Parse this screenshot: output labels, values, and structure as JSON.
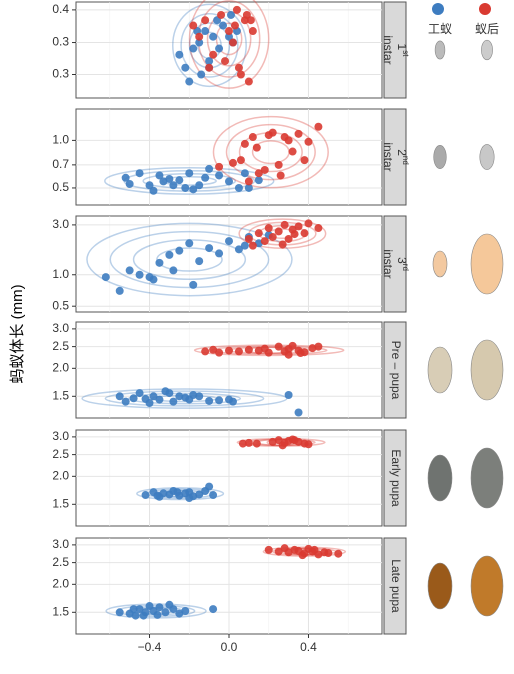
{
  "chart_data": {
    "type": "scatter",
    "y_label": "蚂蚁体长 (mm)",
    "log_y": true,
    "grid": true,
    "legend": [
      {
        "name": "工蚁",
        "color": "#3d7cc0"
      },
      {
        "name": "蚁后",
        "color": "#d93a31"
      }
    ],
    "xlim": [
      -0.77,
      0.77
    ],
    "xticks": [
      {
        "value": -0.4,
        "label": "−0.4"
      },
      {
        "value": 0,
        "label": "0.0"
      },
      0.4
    ],
    "x_minor_ticks": [
      -0.6,
      -0.2,
      0.2,
      0.6
    ],
    "panels": [
      {
        "strip": [
          "1",
          "st",
          "instar"
        ],
        "ylim": [
          0.258,
          0.416
        ],
        "yticks": [
          0.4,
          {
            "value": 0.34,
            "label": "0.3"
          },
          {
            "value": 0.29,
            "label": "0.3"
          }
        ],
        "series": [
          {
            "x": [
              -0.22,
              -0.18,
              -0.15,
              -0.12,
              -0.1,
              -0.08,
              -0.05,
              -0.03,
              0,
              0.02,
              -0.2,
              -0.14,
              -0.06,
              0.04,
              -0.25,
              -0.1,
              -0.16,
              0.01
            ],
            "y": [
              0.3,
              0.33,
              0.34,
              0.36,
              0.31,
              0.35,
              0.33,
              0.37,
              0.35,
              0.34,
              0.28,
              0.29,
              0.38,
              0.36,
              0.32,
              0.3,
              0.36,
              0.39
            ]
          },
          {
            "x": [
              -0.18,
              -0.12,
              -0.08,
              -0.04,
              0,
              0.03,
              0.05,
              0.08,
              0.1,
              0.12,
              -0.02,
              0.06,
              -0.1,
              0.02,
              0.09,
              -0.15,
              0.04,
              0.11
            ],
            "y": [
              0.37,
              0.38,
              0.32,
              0.39,
              0.36,
              0.37,
              0.3,
              0.38,
              0.28,
              0.36,
              0.31,
              0.29,
              0.3,
              0.34,
              0.39,
              0.35,
              0.4,
              0.38
            ]
          }
        ]
      },
      {
        "strip": [
          "2",
          "nd",
          "instar"
        ],
        "ylim": [
          0.39,
          1.58
        ],
        "yticks": [
          {
            "value": 1,
            "label": "1.0"
          },
          0.7,
          0.5
        ],
        "series": [
          {
            "x": [
              -0.52,
              -0.5,
              -0.45,
              -0.4,
              -0.38,
              -0.33,
              -0.3,
              -0.25,
              -0.22,
              -0.2,
              -0.18,
              -0.15,
              -0.1,
              -0.05,
              0,
              0.05,
              -0.28,
              -0.12,
              0.1,
              -0.35,
              0.15,
              0.08
            ],
            "y": [
              0.58,
              0.53,
              0.62,
              0.52,
              0.48,
              0.55,
              0.57,
              0.56,
              0.5,
              0.62,
              0.49,
              0.52,
              0.66,
              0.6,
              0.55,
              0.5,
              0.52,
              0.58,
              0.5,
              0.6,
              0.56,
              0.62
            ]
          },
          {
            "x": [
              -0.05,
              0.02,
              0.08,
              0.12,
              0.15,
              0.2,
              0.22,
              0.25,
              0.28,
              0.3,
              0.32,
              0.35,
              0.38,
              0.4,
              0.45,
              0.1,
              0.18,
              0.26,
              0.06,
              0.14
            ],
            "y": [
              0.68,
              0.72,
              0.95,
              1.05,
              0.62,
              1.08,
              1.12,
              0.7,
              1.05,
              1.0,
              0.85,
              1.1,
              0.75,
              0.98,
              1.22,
              0.55,
              0.65,
              0.6,
              0.75,
              0.9
            ]
          }
        ]
      },
      {
        "strip": [
          "3",
          "rd",
          "instar"
        ],
        "ylim": [
          0.44,
          3.65
        ],
        "yticks": [
          {
            "value": 3,
            "label": "3.0"
          },
          {
            "value": 1,
            "label": "1.0"
          },
          0.5
        ],
        "series": [
          {
            "x": [
              -0.62,
              -0.55,
              -0.5,
              -0.45,
              -0.4,
              -0.35,
              -0.3,
              -0.25,
              -0.2,
              -0.15,
              -0.1,
              -0.05,
              0,
              0.05,
              0.1,
              0.15,
              -0.38,
              -0.28,
              0.2,
              0.08,
              -0.18
            ],
            "y": [
              0.95,
              0.7,
              1.1,
              1.0,
              0.95,
              1.3,
              1.55,
              1.7,
              2.0,
              1.35,
              1.8,
              1.6,
              2.1,
              1.75,
              2.3,
              2.0,
              0.9,
              1.1,
              2.4,
              1.9,
              0.8
            ]
          },
          {
            "x": [
              0.1,
              0.15,
              0.2,
              0.22,
              0.25,
              0.28,
              0.3,
              0.32,
              0.35,
              0.38,
              0.4,
              0.45,
              0.27,
              0.33,
              0.18,
              0.12
            ],
            "y": [
              2.2,
              2.5,
              2.8,
              2.3,
              2.6,
              3.0,
              2.2,
              2.7,
              2.9,
              2.5,
              3.1,
              2.8,
              1.95,
              2.45,
              2.1,
              1.9
            ]
          }
        ]
      },
      {
        "strip": [
          "Pre – pupa"
        ],
        "ylim": [
          1.2,
          3.22
        ],
        "yticks": [
          {
            "value": 3,
            "label": "3.0"
          },
          2.5,
          {
            "value": 2,
            "label": "2.0"
          },
          1.5
        ],
        "series": [
          {
            "x": [
              -0.55,
              -0.52,
              -0.48,
              -0.45,
              -0.4,
              -0.38,
              -0.35,
              -0.3,
              -0.28,
              -0.25,
              -0.22,
              -0.2,
              -0.15,
              -0.1,
              -0.05,
              0,
              0.02,
              -0.42,
              -0.32,
              -0.18,
              0.3,
              0.35
            ],
            "y": [
              1.5,
              1.42,
              1.47,
              1.55,
              1.4,
              1.5,
              1.45,
              1.55,
              1.42,
              1.5,
              1.48,
              1.45,
              1.5,
              1.43,
              1.44,
              1.45,
              1.42,
              1.46,
              1.58,
              1.52,
              1.52,
              1.27
            ]
          },
          {
            "x": [
              -0.12,
              -0.08,
              -0.05,
              0,
              0.05,
              0.1,
              0.15,
              0.18,
              0.2,
              0.25,
              0.28,
              0.3,
              0.32,
              0.35,
              0.38,
              0.42,
              0.45,
              0.3,
              0.36
            ],
            "y": [
              2.38,
              2.42,
              2.35,
              2.4,
              2.38,
              2.42,
              2.4,
              2.45,
              2.35,
              2.5,
              2.38,
              2.44,
              2.52,
              2.4,
              2.36,
              2.46,
              2.5,
              2.3,
              2.34
            ]
          }
        ]
      },
      {
        "strip": [
          "Early pupa"
        ],
        "ylim": [
          1.2,
          3.22
        ],
        "yticks": [
          {
            "value": 3,
            "label": "3.0"
          },
          2.5,
          {
            "value": 2,
            "label": "2.0"
          },
          1.5
        ],
        "series": [
          {
            "x": [
              -0.42,
              -0.38,
              -0.35,
              -0.33,
              -0.3,
              -0.28,
              -0.25,
              -0.22,
              -0.2,
              -0.18,
              -0.15,
              -0.12,
              -0.1,
              -0.36,
              -0.26,
              -0.08,
              -0.2
            ],
            "y": [
              1.65,
              1.7,
              1.62,
              1.68,
              1.66,
              1.72,
              1.64,
              1.68,
              1.7,
              1.63,
              1.66,
              1.72,
              1.8,
              1.64,
              1.7,
              1.65,
              1.6
            ]
          },
          {
            "x": [
              0.07,
              0.1,
              0.14,
              0.22,
              0.25,
              0.28,
              0.3,
              0.32,
              0.35,
              0.38,
              0.4,
              0.27,
              0.33
            ],
            "y": [
              2.8,
              2.82,
              2.8,
              2.85,
              2.9,
              2.82,
              2.88,
              2.92,
              2.85,
              2.8,
              2.78,
              2.75,
              2.9
            ]
          }
        ]
      },
      {
        "strip": [
          "Late pupa"
        ],
        "ylim": [
          1.2,
          3.22
        ],
        "yticks": [
          {
            "value": 3,
            "label": "3.0"
          },
          2.5,
          {
            "value": 2,
            "label": "2.0"
          },
          1.5
        ],
        "series": [
          {
            "x": [
              -0.55,
              -0.5,
              -0.47,
              -0.45,
              -0.42,
              -0.4,
              -0.38,
              -0.35,
              -0.32,
              -0.3,
              -0.28,
              -0.25,
              -0.22,
              -0.43,
              -0.36,
              -0.08,
              -0.48
            ],
            "y": [
              1.5,
              1.48,
              1.45,
              1.55,
              1.5,
              1.6,
              1.52,
              1.58,
              1.5,
              1.62,
              1.55,
              1.48,
              1.52,
              1.45,
              1.46,
              1.55,
              1.55
            ]
          },
          {
            "x": [
              0.2,
              0.25,
              0.28,
              0.3,
              0.33,
              0.35,
              0.38,
              0.4,
              0.42,
              0.45,
              0.48,
              0.5,
              0.55,
              0.37,
              0.43
            ],
            "y": [
              2.85,
              2.8,
              2.9,
              2.78,
              2.85,
              2.82,
              2.75,
              2.88,
              2.8,
              2.72,
              2.78,
              2.76,
              2.74,
              2.7,
              2.85
            ]
          }
        ]
      }
    ]
  }
}
